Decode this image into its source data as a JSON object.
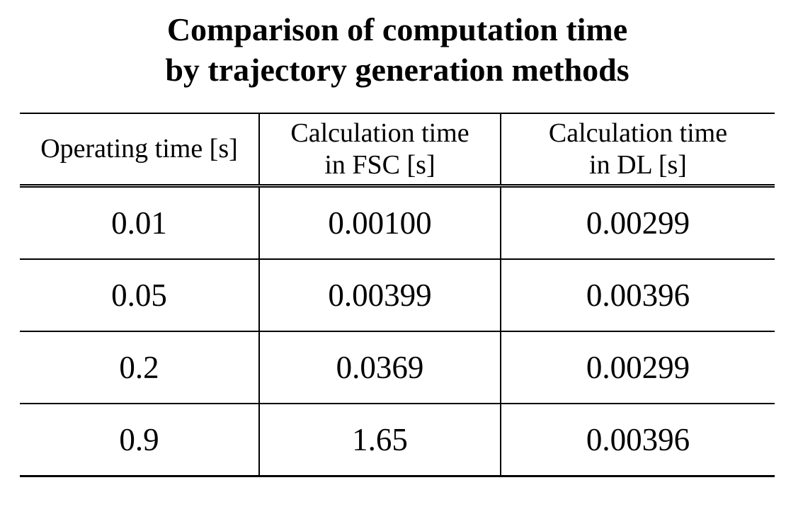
{
  "title": {
    "line1": "Comparison of computation time",
    "line2": "by trajectory generation methods"
  },
  "table": {
    "headers": {
      "operating_time": "Operating time [s]",
      "fsc": "Calculation time\nin FSC [s]",
      "dl": "Calculation time\nin DL [s]"
    },
    "rows": [
      [
        "0.01",
        "0.00100",
        "0.00299"
      ],
      [
        "0.05",
        "0.00399",
        "0.00396"
      ],
      [
        "0.2",
        "0.0369",
        "0.00299"
      ],
      [
        "0.9",
        "1.65",
        "0.00396"
      ]
    ]
  },
  "colors": {
    "text": "#000000",
    "background": "#ffffff",
    "rule": "#000000"
  }
}
